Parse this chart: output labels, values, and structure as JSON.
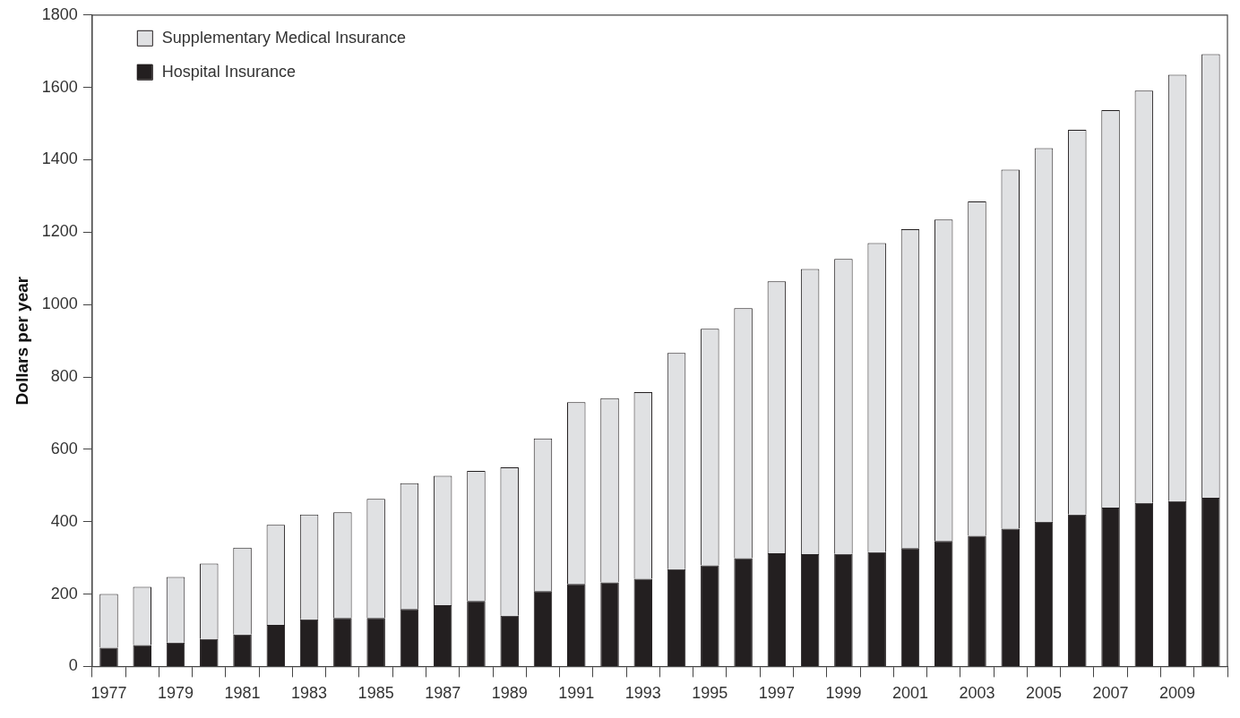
{
  "chart_data": {
    "type": "bar",
    "stacked": true,
    "ylabel": "Dollars per year",
    "categories": [
      "1977",
      null,
      "1979",
      null,
      "1981",
      null,
      "1983",
      null,
      "1985",
      null,
      "1987",
      null,
      "1989",
      null,
      "1991",
      null,
      "1993",
      null,
      "1995",
      null,
      "1997",
      null,
      "1999",
      null,
      "2001",
      null,
      "2003",
      null,
      "2005",
      null,
      "2007",
      null,
      "2009",
      null
    ],
    "series": [
      {
        "name": "Hospital Insurance",
        "color": "#231f20",
        "values": [
          52,
          59,
          66,
          76,
          88,
          115,
          130,
          134,
          134,
          159,
          169,
          181,
          140,
          208,
          228,
          232,
          242,
          269,
          279,
          299,
          313,
          310,
          311,
          316,
          327,
          347,
          361,
          381,
          400,
          420,
          439,
          452,
          457,
          466
        ]
      },
      {
        "name": "Supplementary Medical Insurance",
        "color": "#e0e1e3",
        "values": [
          148,
          161,
          181,
          208,
          240,
          276,
          290,
          292,
          329,
          347,
          358,
          359,
          410,
          422,
          502,
          509,
          516,
          597,
          654,
          691,
          751,
          788,
          815,
          854,
          881,
          888,
          924,
          992,
          1032,
          1063,
          1098,
          1139,
          1178,
          1226
        ]
      }
    ],
    "ylim": [
      0,
      1800
    ],
    "yticks": [
      0,
      200,
      400,
      600,
      800,
      1000,
      1200,
      1400,
      1600,
      1800
    ],
    "grid": false,
    "legend": "top left"
  }
}
